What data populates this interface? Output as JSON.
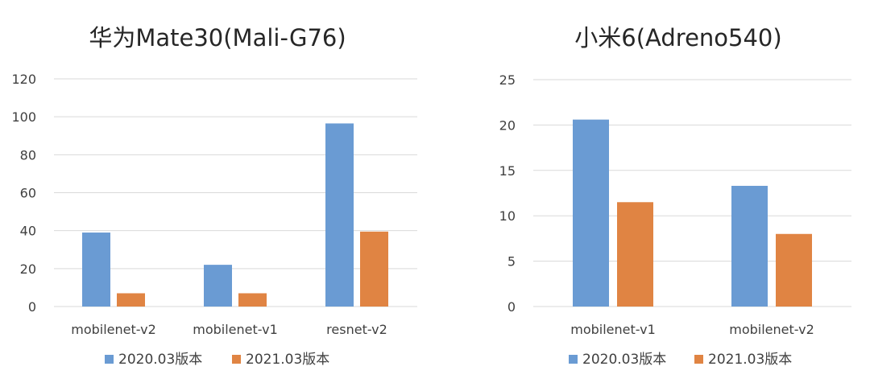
{
  "chart_data": [
    {
      "type": "bar",
      "title": "华为Mate30(Mali-G76)",
      "categories": [
        "mobilenet-v2",
        "mobilenet-v1",
        "resnet-v2"
      ],
      "series": [
        {
          "name": "2020.03版本",
          "values": [
            39,
            22,
            96.5
          ],
          "color": "#6a9bd3"
        },
        {
          "name": "2021.03版本",
          "values": [
            7,
            7,
            39.5
          ],
          "color": "#e08443"
        }
      ],
      "yticks": [
        "0",
        "20",
        "40",
        "60",
        "80",
        "100",
        "120"
      ],
      "ylim": [
        0,
        120
      ],
      "grid": true,
      "legend_position": "bottom"
    },
    {
      "type": "bar",
      "title": "小米6(Adreno540)",
      "categories": [
        "mobilenet-v1",
        "mobilenet-v2"
      ],
      "series": [
        {
          "name": "2020.03版本",
          "values": [
            20.6,
            13.3
          ],
          "color": "#6a9bd3"
        },
        {
          "name": "2021.03版本",
          "values": [
            11.5,
            8
          ],
          "color": "#e08443"
        }
      ],
      "yticks": [
        "0",
        "5",
        "10",
        "15",
        "20",
        "25"
      ],
      "ylim": [
        0,
        25
      ],
      "grid": true,
      "legend_position": "bottom"
    }
  ]
}
